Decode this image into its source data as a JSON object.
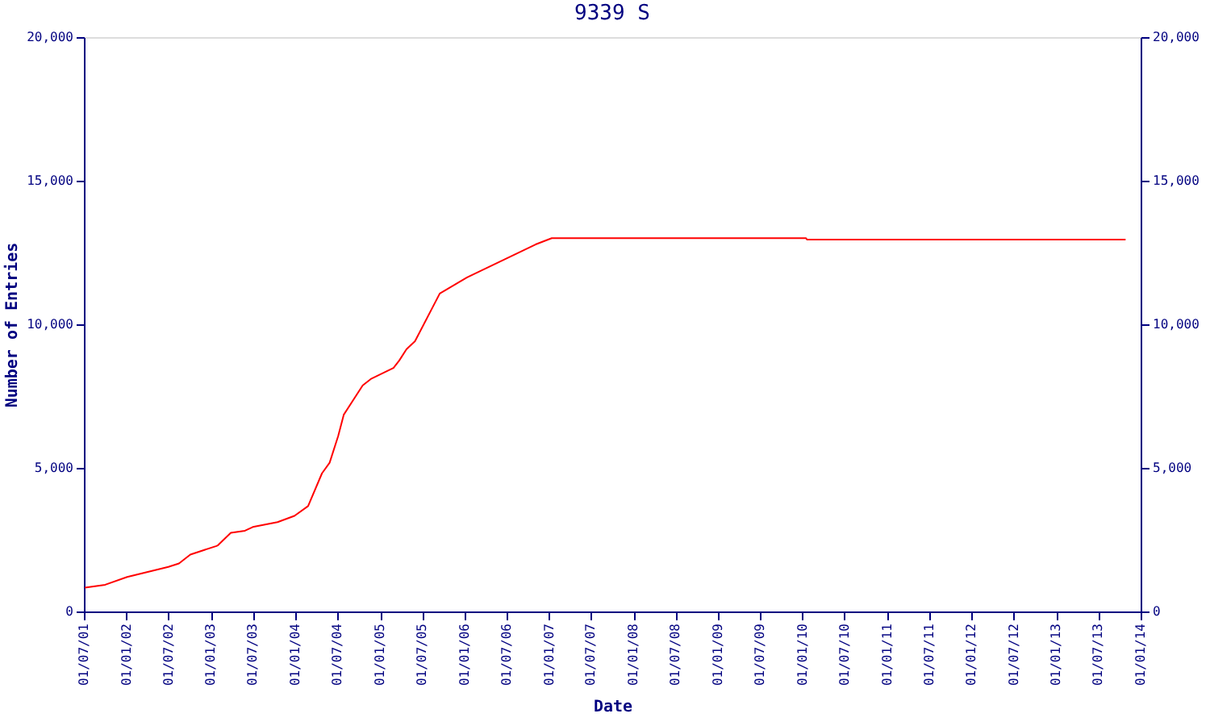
{
  "chart_data": {
    "type": "line",
    "title": "9339 S",
    "xlabel": "Date",
    "ylabel": "Number of Entries",
    "x": [
      "2001-07-05",
      "2001-10-01",
      "2002-01-04",
      "2002-07-01",
      "2002-08-16",
      "2002-10-04",
      "2003-01-25",
      "2003-02-01",
      "2003-03-28",
      "2003-05-28",
      "2003-07-01",
      "2003-10-16",
      "2003-12-28",
      "2004-02-25",
      "2004-04-25",
      "2004-05-28",
      "2004-07-04",
      "2004-07-28",
      "2004-10-18",
      "2004-11-25",
      "2005-02-28",
      "2005-03-25",
      "2005-04-25",
      "2005-06-01",
      "2005-09-16",
      "2006-01-12",
      "2006-11-04",
      "2007-01-13",
      "2010-01-16",
      "2010-01-20",
      "2013-10-28"
    ],
    "series": [
      {
        "color": "#ff0000",
        "values": [
          830,
          930,
          1200,
          1550,
          1670,
          1980,
          2280,
          2310,
          2740,
          2810,
          2940,
          3110,
          3330,
          3670,
          4810,
          5180,
          6110,
          6850,
          7870,
          8110,
          8480,
          8740,
          9130,
          9410,
          11070,
          11630,
          12780,
          13000,
          13000,
          12950,
          12950
        ]
      }
    ],
    "xlim": [
      "2001-07-01",
      "2014-01-01"
    ],
    "xticks": [
      {
        "value": "2001-07-01",
        "label": "01/07/01"
      },
      {
        "value": "2002-01-01",
        "label": "01/01/02"
      },
      {
        "value": "2002-07-01",
        "label": "01/07/02"
      },
      {
        "value": "2003-01-01",
        "label": "01/01/03"
      },
      {
        "value": "2003-07-01",
        "label": "01/07/03"
      },
      {
        "value": "2004-01-01",
        "label": "01/01/04"
      },
      {
        "value": "2004-07-01",
        "label": "01/07/04"
      },
      {
        "value": "2005-01-01",
        "label": "01/01/05"
      },
      {
        "value": "2005-07-01",
        "label": "01/07/05"
      },
      {
        "value": "2006-01-01",
        "label": "01/01/06"
      },
      {
        "value": "2006-07-01",
        "label": "01/07/06"
      },
      {
        "value": "2007-01-01",
        "label": "01/01/07"
      },
      {
        "value": "2007-07-01",
        "label": "01/07/07"
      },
      {
        "value": "2008-01-01",
        "label": "01/01/08"
      },
      {
        "value": "2008-07-01",
        "label": "01/07/08"
      },
      {
        "value": "2009-01-01",
        "label": "01/01/09"
      },
      {
        "value": "2009-07-01",
        "label": "01/07/09"
      },
      {
        "value": "2010-01-01",
        "label": "01/01/10"
      },
      {
        "value": "2010-07-01",
        "label": "01/07/10"
      },
      {
        "value": "2011-01-01",
        "label": "01/01/11"
      },
      {
        "value": "2011-07-01",
        "label": "01/07/11"
      },
      {
        "value": "2012-01-01",
        "label": "01/01/12"
      },
      {
        "value": "2012-07-01",
        "label": "01/07/12"
      },
      {
        "value": "2013-01-01",
        "label": "01/01/13"
      },
      {
        "value": "2013-07-01",
        "label": "01/07/13"
      },
      {
        "value": "2014-01-01",
        "label": "01/01/14"
      }
    ],
    "ylim": [
      0,
      20000
    ],
    "yticks": [
      0,
      {
        "value": 5000,
        "label": "5,000"
      },
      {
        "value": 10000,
        "label": "10,000"
      },
      {
        "value": 15000,
        "label": "15,000"
      },
      {
        "value": 20000,
        "label": "20,000"
      }
    ],
    "y2lim": [
      0,
      20000
    ],
    "y2ticks": [
      0,
      {
        "value": 5000,
        "label": "5,000"
      },
      {
        "value": 10000,
        "label": "10,000"
      },
      {
        "value": 15000,
        "label": "15,000"
      },
      {
        "value": 20000,
        "label": "20,000"
      }
    ],
    "grid": false,
    "marker": "none",
    "line_style": "solid"
  }
}
